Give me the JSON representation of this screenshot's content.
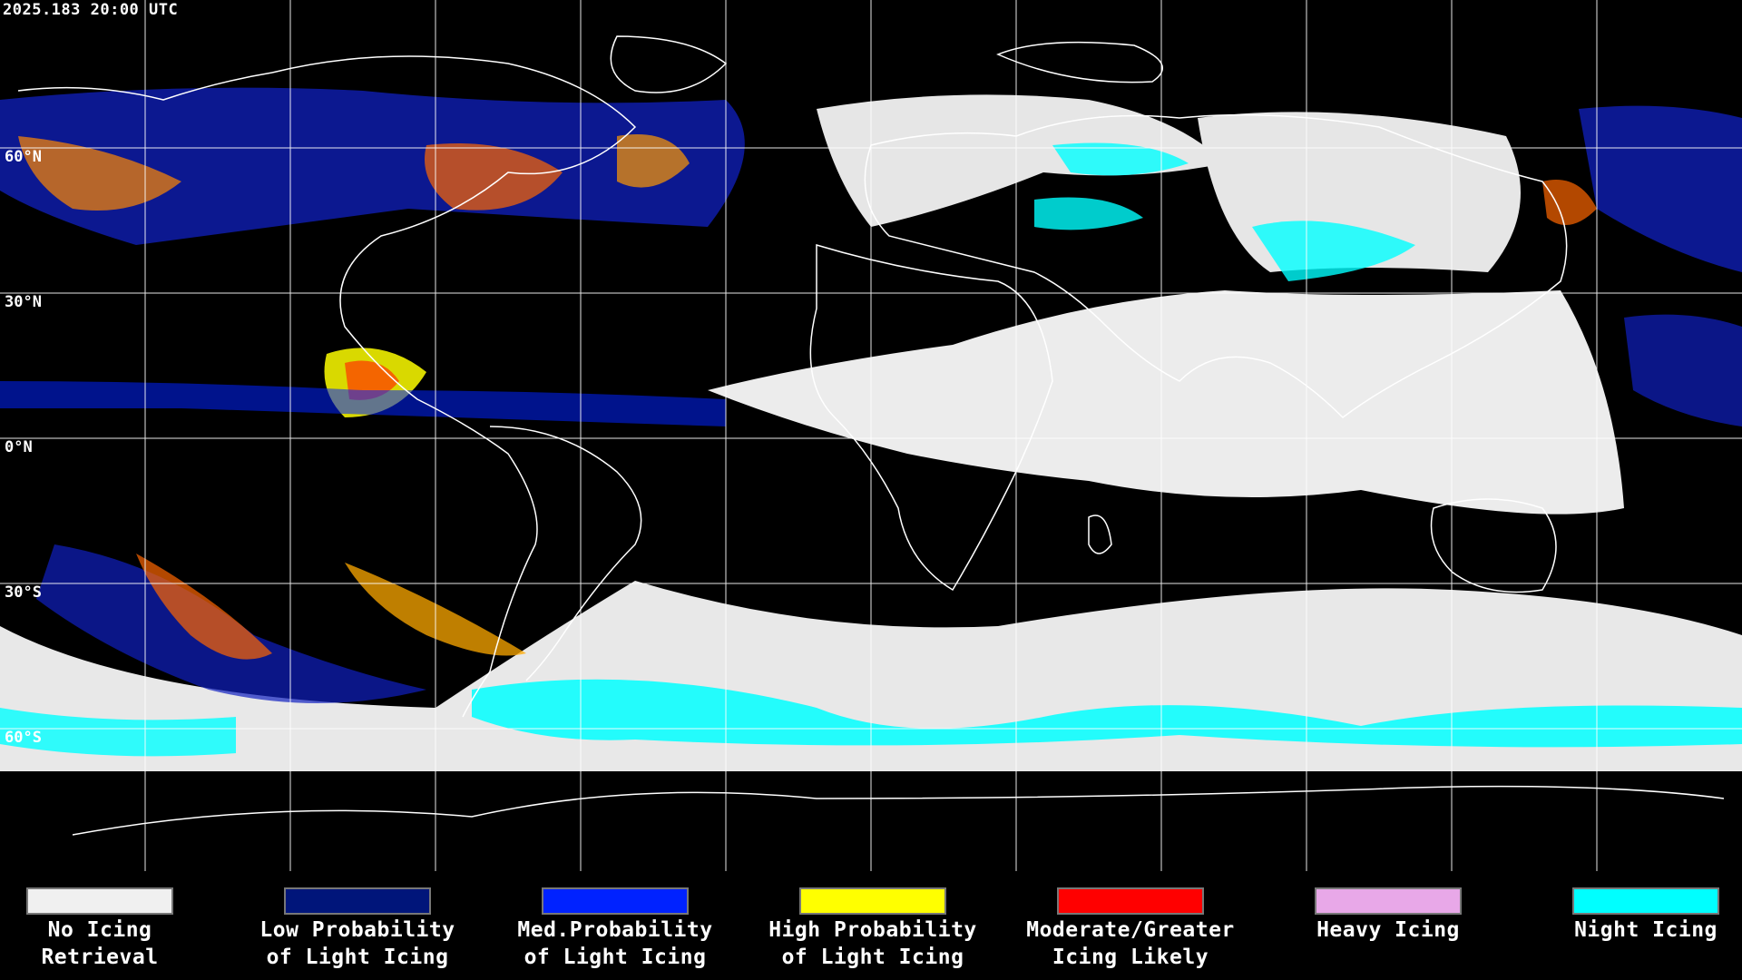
{
  "timestamp": "2025.183 20:00 UTC",
  "lat_labels": [
    "60°N",
    "30°N",
    "0°N",
    "30°S",
    "60°S"
  ],
  "legend": [
    {
      "line1": "No Icing",
      "line2": "Retrieval",
      "color": "#f0f0f0"
    },
    {
      "line1": "Low Probability",
      "line2": "of Light Icing",
      "color": "#00157a"
    },
    {
      "line1": "Med.Probability",
      "line2": "of Light Icing",
      "color": "#0022ff"
    },
    {
      "line1": "High Probability",
      "line2": "of Light Icing",
      "color": "#ffff00"
    },
    {
      "line1": "Moderate/Greater",
      "line2": "Icing Likely",
      "color": "#ff0000"
    },
    {
      "line1": "Heavy Icing",
      "line2": "",
      "color": "#e8a8e8"
    },
    {
      "line1": "Night Icing",
      "line2": "",
      "color": "#00ffff"
    }
  ]
}
